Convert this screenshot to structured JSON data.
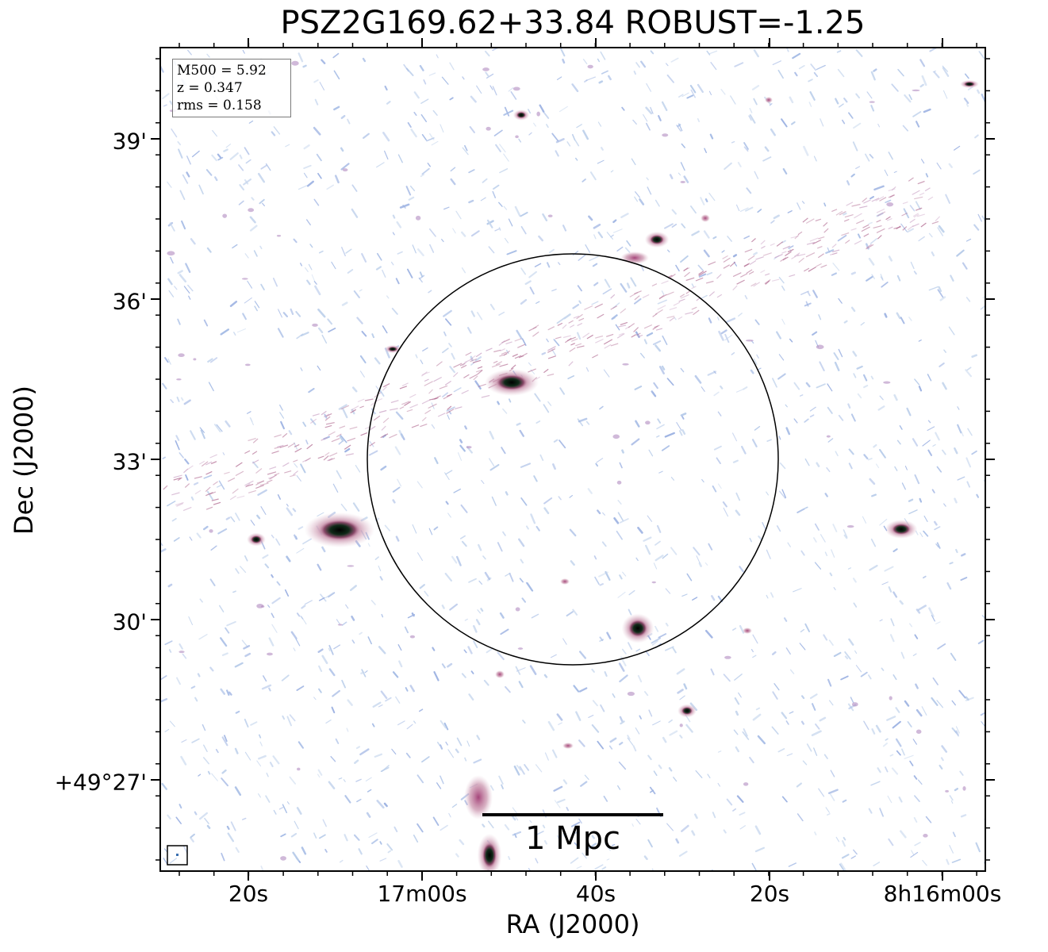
{
  "figure": {
    "title": "PSZ2G169.62+33.84 ROBUST=-1.25",
    "xlabel": "RA (J2000)",
    "ylabel": "Dec (J2000)",
    "x_ticks": [
      "20s",
      "17m00s",
      "40s",
      "20s",
      "8h16m00s"
    ],
    "y_ticks": [
      "39'",
      "36'",
      "33'",
      "30'",
      "+49°27'"
    ],
    "info": {
      "m500": "M500 = 5.92",
      "z": "z = 0.347",
      "rms": "rms = 0.158"
    },
    "scalebar_label": "1 Mpc"
  },
  "colors": {
    "background": "#ffffff",
    "noise_light": "#b9cdea",
    "noise_mid": "#9fb4e3",
    "emission_pink": "#c07090",
    "emission_magenta": "#a5457a",
    "core_dark": "#0a1a10",
    "frame": "#000000"
  }
}
